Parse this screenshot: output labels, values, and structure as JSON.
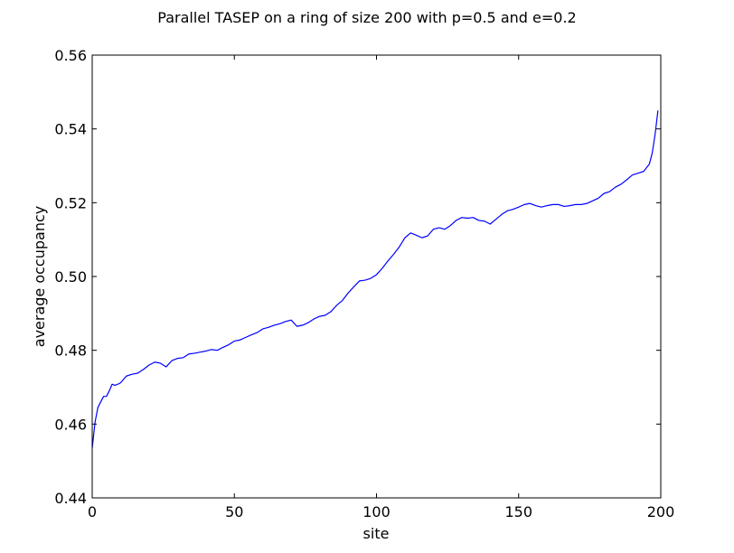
{
  "chart_data": {
    "type": "line",
    "title": "Parallel TASEP on a ring of size 200 with p=0.5 and e=0.2",
    "xlabel": "site",
    "ylabel": "average occupancy",
    "xlim": [
      0,
      200
    ],
    "ylim": [
      0.44,
      0.56
    ],
    "xticks": [
      0,
      50,
      100,
      150,
      200
    ],
    "yticks": [
      0.44,
      0.46,
      0.48,
      0.5,
      0.52,
      0.54,
      0.56
    ],
    "xtick_labels": [
      "0",
      "50",
      "100",
      "150",
      "200"
    ],
    "ytick_labels": [
      "0.44",
      "0.46",
      "0.48",
      "0.50",
      "0.52",
      "0.54",
      "0.56"
    ],
    "grid": false,
    "line_color": "#0000ff",
    "series": [
      {
        "x": [
          0,
          1,
          2,
          3,
          4,
          5,
          6,
          7,
          8,
          9,
          10,
          12,
          14,
          16,
          18,
          20,
          22,
          24,
          26,
          28,
          30,
          32,
          34,
          36,
          38,
          40,
          42,
          44,
          46,
          48,
          50,
          52,
          54,
          56,
          58,
          60,
          62,
          64,
          66,
          68,
          70,
          72,
          74,
          76,
          78,
          80,
          82,
          84,
          86,
          88,
          90,
          92,
          94,
          96,
          98,
          100,
          102,
          104,
          106,
          108,
          110,
          112,
          114,
          116,
          118,
          120,
          122,
          124,
          126,
          128,
          130,
          132,
          134,
          136,
          138,
          140,
          142,
          144,
          146,
          148,
          150,
          152,
          154,
          156,
          158,
          160,
          162,
          164,
          166,
          168,
          170,
          172,
          174,
          176,
          178,
          180,
          182,
          184,
          186,
          188,
          190,
          192,
          194,
          196,
          197,
          198,
          199
        ],
        "y": [
          0.4535,
          0.4605,
          0.4645,
          0.466,
          0.4675,
          0.4675,
          0.469,
          0.4708,
          0.4705,
          0.4708,
          0.4712,
          0.473,
          0.4735,
          0.4738,
          0.4748,
          0.476,
          0.4768,
          0.4765,
          0.4755,
          0.4772,
          0.4778,
          0.478,
          0.479,
          0.4792,
          0.4795,
          0.4798,
          0.4802,
          0.48,
          0.4808,
          0.4815,
          0.4825,
          0.4828,
          0.4835,
          0.4842,
          0.4848,
          0.4858,
          0.4862,
          0.4868,
          0.4872,
          0.4878,
          0.4882,
          0.4865,
          0.4868,
          0.4875,
          0.4885,
          0.4892,
          0.4895,
          0.4905,
          0.4922,
          0.4935,
          0.4955,
          0.4972,
          0.4988,
          0.499,
          0.4995,
          0.5005,
          0.5022,
          0.5042,
          0.506,
          0.508,
          0.5105,
          0.5118,
          0.5112,
          0.5105,
          0.511,
          0.5128,
          0.5132,
          0.5128,
          0.5138,
          0.5152,
          0.516,
          0.5158,
          0.516,
          0.5152,
          0.515,
          0.5142,
          0.5155,
          0.5168,
          0.5178,
          0.5182,
          0.5188,
          0.5195,
          0.5198,
          0.5192,
          0.5188,
          0.5192,
          0.5195,
          0.5195,
          0.519,
          0.5192,
          0.5195,
          0.5195,
          0.5198,
          0.5205,
          0.5212,
          0.5225,
          0.523,
          0.5242,
          0.525,
          0.5262,
          0.5275,
          0.528,
          0.5285,
          0.5305,
          0.5335,
          0.5385,
          0.545
        ]
      }
    ]
  }
}
